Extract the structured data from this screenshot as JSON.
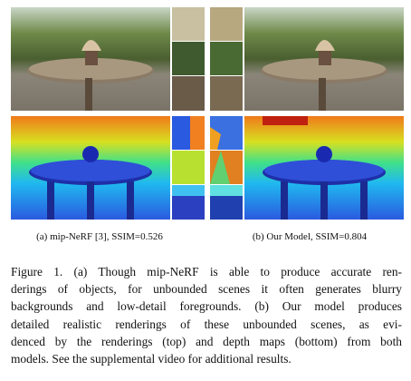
{
  "subcaptions": [
    "(a) mip-NeRF [3], SSIM=0.526",
    "(b) Our Model, SSIM=0.804"
  ],
  "caption": {
    "lines": [
      "Figure 1. (a) Though mip-NeRF is able to produce accurate ren-",
      "derings of objects, for unbounded scenes it often generates blurry",
      "backgrounds and low-detail foregrounds. (b) Our model produces",
      "detailed realistic renderings of these unbounded scenes, as evi-",
      "denced by the renderings (top) and depth maps (bottom) from both",
      "models. See the supplemental video for additional results."
    ]
  }
}
